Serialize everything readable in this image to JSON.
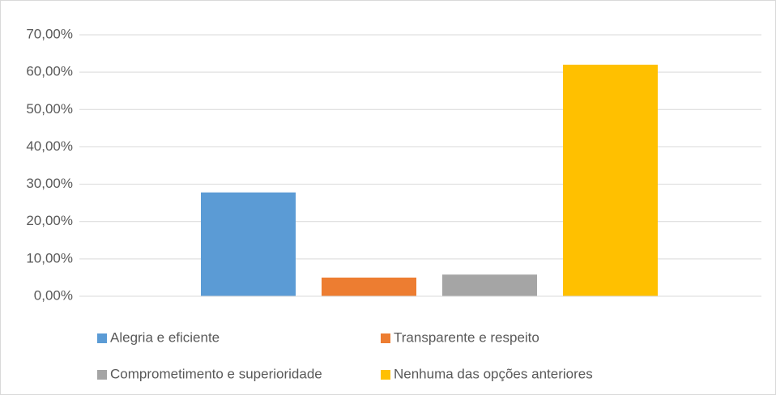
{
  "chart_data": {
    "type": "bar",
    "categories": [
      null
    ],
    "series": [
      {
        "name": "Alegria e eficiente",
        "color": "#5b9bd5",
        "values": [
          27.8
        ]
      },
      {
        "name": "Transparente e respeito",
        "color": "#ed7d31",
        "values": [
          5.0
        ]
      },
      {
        "name": "Comprometimento e superioridade",
        "color": "#a5a5a5",
        "values": [
          5.8
        ]
      },
      {
        "name": "Nenhuma das opções anteriores",
        "color": "#ffc000",
        "values": [
          62.0
        ]
      }
    ],
    "ylim": [
      0,
      70
    ],
    "yticks": [
      {
        "value": 0,
        "label": "0,00%"
      },
      {
        "value": 10,
        "label": "10,00%"
      },
      {
        "value": 20,
        "label": "20,00%"
      },
      {
        "value": 30,
        "label": "30,00%"
      },
      {
        "value": 40,
        "label": "40,00%"
      },
      {
        "value": 50,
        "label": "50,00%"
      },
      {
        "value": 60,
        "label": "60,00%"
      },
      {
        "value": 70,
        "label": "70,00%"
      }
    ],
    "grid": true,
    "legend": "bottom"
  }
}
